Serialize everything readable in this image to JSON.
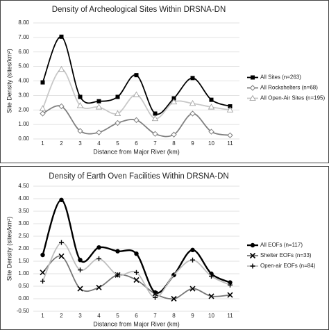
{
  "chart_data": [
    {
      "type": "line",
      "title": "Density of Archeological Sites Within DRSNA-DN",
      "xlabel": "Distance from Major River (km)",
      "ylabel": "Site Density (sites/km²)",
      "categories": [
        "1",
        "2",
        "3",
        "4",
        "5",
        "6",
        "7",
        "8",
        "9",
        "10",
        "11"
      ],
      "ylim": [
        0,
        8
      ],
      "yticks": [
        {
          "value": 0,
          "label": "0.00"
        },
        {
          "value": 1,
          "label": "1.00"
        },
        {
          "value": 2,
          "label": "2.00"
        },
        {
          "value": 3,
          "label": "3.00"
        },
        {
          "value": 4,
          "label": "4.00"
        },
        {
          "value": 5,
          "label": "5.00"
        },
        {
          "value": 6,
          "label": "6.00"
        },
        {
          "value": 7,
          "label": "7.00"
        },
        {
          "value": 8,
          "label": "8.00"
        }
      ],
      "grid": true,
      "legend": "right",
      "series": [
        {
          "name": "All Sites (n=263)",
          "color": "#000000",
          "marker": "square",
          "values": [
            3.9,
            7.05,
            2.9,
            2.6,
            2.9,
            4.4,
            1.75,
            2.8,
            4.2,
            2.7,
            2.25
          ]
        },
        {
          "name": "All Rockshelters (n=68)",
          "color": "#808080",
          "marker": "diamond",
          "values": [
            1.75,
            2.25,
            0.55,
            0.45,
            1.1,
            1.3,
            0.35,
            0.3,
            1.75,
            0.5,
            0.25
          ]
        },
        {
          "name": "All Open-Air Sites (n=195)",
          "color": "#c8c8c8",
          "marker": "triangle",
          "values": [
            2.1,
            4.8,
            2.3,
            2.2,
            1.75,
            3.05,
            1.4,
            2.55,
            2.45,
            2.2,
            2.0
          ]
        }
      ]
    },
    {
      "type": "line",
      "title": "Density of Earth Oven Facilities Within DRSNA-DN",
      "xlabel": "Distance from Major River (km)",
      "ylabel": "Site Density (sites/km²)",
      "categories": [
        "1",
        "2",
        "3",
        "4",
        "5",
        "6",
        "7",
        "8",
        "9",
        "10",
        "11"
      ],
      "ylim": [
        -0.5,
        4.5
      ],
      "yticks": [
        {
          "value": -0.5,
          "label": "-0.50"
        },
        {
          "value": 0,
          "label": "0.00"
        },
        {
          "value": 0.5,
          "label": "0.50"
        },
        {
          "value": 1,
          "label": "1.00"
        },
        {
          "value": 1.5,
          "label": "1.50"
        },
        {
          "value": 2,
          "label": "2.00"
        },
        {
          "value": 2.5,
          "label": "2.50"
        },
        {
          "value": 3,
          "label": "3.00"
        },
        {
          "value": 3.5,
          "label": "3.50"
        },
        {
          "value": 4,
          "label": "4.00"
        },
        {
          "value": 4.5,
          "label": "4.50"
        }
      ],
      "grid": true,
      "legend": "right",
      "series": [
        {
          "name": "All EOFs (n=117)",
          "color": "#000000",
          "marker": "dot",
          "values": [
            1.75,
            3.95,
            1.55,
            2.05,
            1.9,
            1.8,
            0.25,
            0.95,
            1.95,
            1.0,
            0.65
          ]
        },
        {
          "name": "Shelter EOFs (n=33)",
          "color": "#777777",
          "marker": "x",
          "values": [
            1.05,
            1.7,
            0.4,
            0.45,
            0.95,
            0.75,
            0.2,
            0.0,
            0.4,
            0.1,
            0.15
          ]
        },
        {
          "name": "Open-air EOFs (n=84)",
          "color": "#bdbdbd",
          "marker": "plus",
          "values": [
            0.7,
            2.25,
            1.15,
            1.6,
            0.95,
            1.05,
            0.05,
            0.95,
            1.55,
            0.9,
            0.55
          ]
        }
      ]
    }
  ]
}
